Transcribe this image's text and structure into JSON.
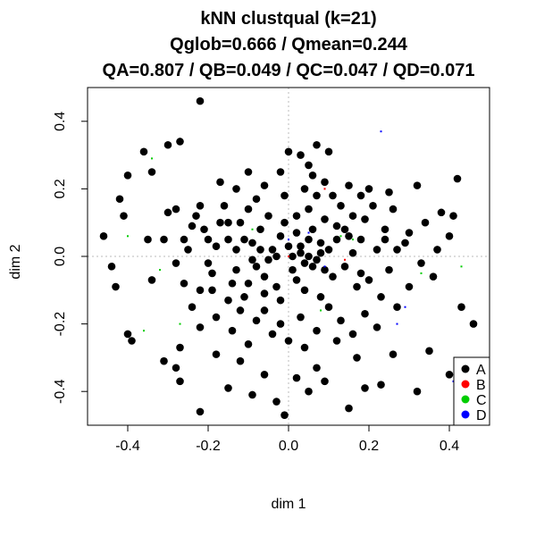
{
  "chart_data": {
    "type": "scatter",
    "title_lines": [
      "kNN clustqual (k=21)",
      "Qglob=0.666 / Qmean=0.244",
      "QA=0.807 / QB=0.049 / QC=0.047 / QD=0.071"
    ],
    "xlabel": "dim 1",
    "ylabel": "dim 2",
    "xlim": [
      -0.5,
      0.5
    ],
    "ylim": [
      -0.5,
      0.5
    ],
    "x_ticks": [
      -0.4,
      -0.2,
      0.0,
      0.2,
      0.4
    ],
    "x_tick_labels": [
      "-0.4",
      "-0.2",
      "0.0",
      "0.2",
      "0.4"
    ],
    "y_ticks": [
      -0.4,
      -0.2,
      0.0,
      0.2,
      0.4
    ],
    "y_tick_labels": [
      "-0.4",
      "-0.2",
      "0.0",
      "0.2",
      "0.4"
    ],
    "reference_lines": {
      "x": 0,
      "y": 0,
      "style": "dotted",
      "color": "#bbbbbb"
    },
    "grid": false,
    "legend_position": "bottom-right",
    "series": [
      {
        "name": "A",
        "color": "#000000",
        "points": [
          [
            -0.22,
            0.46
          ],
          [
            -0.3,
            0.33
          ],
          [
            -0.27,
            0.34
          ],
          [
            -0.36,
            0.31
          ],
          [
            -0.34,
            0.25
          ],
          [
            -0.4,
            0.24
          ],
          [
            -0.46,
            0.06
          ],
          [
            -0.44,
            -0.03
          ],
          [
            -0.43,
            -0.09
          ],
          [
            -0.42,
            0.17
          ],
          [
            -0.41,
            0.12
          ],
          [
            -0.35,
            0.05
          ],
          [
            -0.34,
            -0.07
          ],
          [
            -0.31,
            0.05
          ],
          [
            -0.3,
            0.13
          ],
          [
            -0.28,
            0.14
          ],
          [
            -0.26,
            0.05
          ],
          [
            -0.25,
            0.02
          ],
          [
            -0.24,
            0.09
          ],
          [
            -0.23,
            0.12
          ],
          [
            -0.22,
            0.15
          ],
          [
            -0.21,
            0.08
          ],
          [
            -0.2,
            -0.02
          ],
          [
            -0.19,
            -0.05
          ],
          [
            -0.18,
            0.03
          ],
          [
            -0.17,
            0.1
          ],
          [
            -0.16,
            0.15
          ],
          [
            -0.15,
            0.05
          ],
          [
            -0.14,
            -0.08
          ],
          [
            -0.13,
            0.02
          ],
          [
            -0.12,
            0.1
          ],
          [
            -0.11,
            -0.12
          ],
          [
            -0.1,
            0.14
          ],
          [
            -0.09,
            0.04
          ],
          [
            -0.08,
            -0.03
          ],
          [
            -0.07,
            0.08
          ],
          [
            -0.06,
            -0.06
          ],
          [
            -0.05,
            0.12
          ],
          [
            -0.04,
            0.02
          ],
          [
            -0.03,
            -0.09
          ],
          [
            -0.02,
            0.06
          ],
          [
            -0.01,
            0.18
          ],
          [
            0.0,
            0.03
          ],
          [
            0.01,
            -0.04
          ],
          [
            0.02,
            0.07
          ],
          [
            0.03,
            0.01
          ],
          [
            0.04,
            -0.02
          ],
          [
            0.05,
            0.05
          ],
          [
            0.06,
            0.08
          ],
          [
            0.07,
            -0.01
          ],
          [
            0.08,
            0.04
          ],
          [
            0.09,
            0.11
          ],
          [
            0.1,
            0.02
          ],
          [
            0.11,
            -0.06
          ],
          [
            0.12,
            0.09
          ],
          [
            0.13,
            0.15
          ],
          [
            0.14,
            -0.03
          ],
          [
            0.15,
            0.06
          ],
          [
            0.16,
            0.12
          ],
          [
            0.17,
            -0.09
          ],
          [
            0.18,
            0.05
          ],
          [
            0.19,
            0.11
          ],
          [
            0.2,
            -0.07
          ],
          [
            0.21,
            0.15
          ],
          [
            0.22,
            0.02
          ],
          [
            0.23,
            -0.12
          ],
          [
            0.24,
            0.08
          ],
          [
            0.25,
            -0.04
          ],
          [
            0.26,
            0.14
          ],
          [
            0.27,
            -0.15
          ],
          [
            0.29,
            0.04
          ],
          [
            0.3,
            -0.09
          ],
          [
            0.32,
            0.21
          ],
          [
            0.34,
            0.1
          ],
          [
            0.36,
            -0.06
          ],
          [
            0.38,
            0.13
          ],
          [
            0.4,
            0.06
          ],
          [
            0.41,
            0.12
          ],
          [
            0.42,
            0.23
          ],
          [
            0.43,
            -0.15
          ],
          [
            0.46,
            -0.2
          ],
          [
            0.4,
            -0.35
          ],
          [
            0.43,
            -0.33
          ],
          [
            0.35,
            -0.28
          ],
          [
            0.32,
            -0.4
          ],
          [
            0.26,
            -0.29
          ],
          [
            0.23,
            -0.38
          ],
          [
            0.19,
            -0.39
          ],
          [
            0.17,
            -0.3
          ],
          [
            0.15,
            -0.45
          ],
          [
            0.12,
            -0.25
          ],
          [
            0.09,
            -0.37
          ],
          [
            0.07,
            -0.33
          ],
          [
            0.05,
            -0.4
          ],
          [
            0.02,
            -0.36
          ],
          [
            -0.01,
            -0.47
          ],
          [
            -0.03,
            -0.43
          ],
          [
            -0.06,
            -0.35
          ],
          [
            -0.09,
            -0.41
          ],
          [
            -0.12,
            -0.31
          ],
          [
            -0.15,
            -0.39
          ],
          [
            -0.18,
            -0.29
          ],
          [
            -0.22,
            -0.46
          ],
          [
            -0.27,
            -0.37
          ],
          [
            -0.28,
            -0.33
          ],
          [
            -0.27,
            -0.27
          ],
          [
            -0.31,
            -0.31
          ],
          [
            -0.39,
            -0.25
          ],
          [
            -0.4,
            -0.23
          ],
          [
            -0.22,
            -0.21
          ],
          [
            -0.18,
            -0.18
          ],
          [
            -0.14,
            -0.22
          ],
          [
            -0.1,
            -0.26
          ],
          [
            -0.06,
            -0.16
          ],
          [
            -0.02,
            -0.2
          ],
          [
            0.03,
            -0.18
          ],
          [
            0.07,
            -0.22
          ],
          [
            0.1,
            -0.15
          ],
          [
            0.13,
            -0.19
          ],
          [
            0.16,
            -0.23
          ],
          [
            0.19,
            -0.17
          ],
          [
            0.22,
            -0.21
          ],
          [
            0.08,
            -0.12
          ],
          [
            0.04,
            -0.1
          ],
          [
            -0.02,
            -0.13
          ],
          [
            -0.06,
            -0.11
          ],
          [
            -0.1,
            -0.08
          ],
          [
            -0.15,
            -0.13
          ],
          [
            -0.19,
            -0.1
          ],
          [
            -0.24,
            -0.15
          ],
          [
            -0.26,
            -0.08
          ],
          [
            -0.28,
            -0.02
          ],
          [
            0.0,
            0.31
          ],
          [
            0.03,
            0.3
          ],
          [
            0.05,
            0.27
          ],
          [
            0.06,
            0.24
          ],
          [
            0.09,
            0.22
          ],
          [
            0.11,
            0.18
          ],
          [
            0.1,
            0.31
          ],
          [
            0.07,
            0.33
          ],
          [
            -0.02,
            0.25
          ],
          [
            -0.06,
            0.21
          ],
          [
            -0.1,
            0.25
          ],
          [
            -0.13,
            0.2
          ],
          [
            -0.17,
            0.22
          ],
          [
            0.15,
            0.21
          ],
          [
            0.18,
            0.18
          ],
          [
            0.2,
            0.2
          ],
          [
            0.25,
            0.19
          ],
          [
            0.05,
            0.14
          ],
          [
            0.02,
            0.12
          ],
          [
            -0.01,
            0.1
          ],
          [
            0.07,
            0.18
          ],
          [
            0.04,
            0.2
          ],
          [
            0.12,
            0.05
          ],
          [
            0.14,
            0.08
          ],
          [
            0.16,
            0.01
          ],
          [
            0.01,
            0.0
          ],
          [
            0.03,
            0.03
          ],
          [
            0.05,
            0.0
          ],
          [
            0.06,
            -0.03
          ],
          [
            0.08,
            0.01
          ],
          [
            0.09,
            -0.04
          ],
          [
            0.02,
            -0.07
          ],
          [
            -0.03,
            0.0
          ],
          [
            -0.05,
            -0.01
          ],
          [
            -0.07,
            0.02
          ],
          [
            -0.09,
            -0.01
          ],
          [
            -0.11,
            0.05
          ],
          [
            -0.13,
            -0.04
          ],
          [
            -0.12,
            -0.16
          ],
          [
            -0.08,
            -0.19
          ],
          [
            -0.04,
            -0.23
          ],
          [
            0.0,
            -0.25
          ],
          [
            0.04,
            -0.27
          ],
          [
            -0.08,
            0.17
          ],
          [
            -0.15,
            0.1
          ],
          [
            -0.2,
            0.05
          ],
          [
            -0.22,
            -0.1
          ],
          [
            0.18,
            -0.05
          ],
          [
            0.24,
            0.05
          ],
          [
            0.27,
            0.02
          ],
          [
            0.3,
            0.07
          ],
          [
            0.33,
            -0.02
          ],
          [
            0.37,
            0.02
          ]
        ]
      },
      {
        "name": "B",
        "color": "#ff0000",
        "points": [
          [
            0.0,
            0.0
          ],
          [
            0.09,
            0.2
          ],
          [
            0.14,
            -0.01
          ]
        ]
      },
      {
        "name": "C",
        "color": "#00cd00",
        "points": [
          [
            -0.32,
            -0.04
          ],
          [
            -0.36,
            -0.22
          ],
          [
            -0.27,
            -0.2
          ],
          [
            0.33,
            -0.05
          ],
          [
            0.43,
            -0.03
          ],
          [
            -0.4,
            0.06
          ],
          [
            -0.34,
            0.29
          ],
          [
            0.16,
            0.05
          ],
          [
            -0.09,
            0.08
          ],
          [
            0.13,
            0.06
          ],
          [
            0.08,
            -0.16
          ]
        ]
      },
      {
        "name": "D",
        "color": "#0000ff",
        "points": [
          [
            0.23,
            0.37
          ],
          [
            0.29,
            -0.15
          ],
          [
            0.27,
            -0.2
          ],
          [
            0.05,
            0.07
          ],
          [
            0.0,
            0.05
          ],
          [
            0.09,
            -0.03
          ],
          [
            0.41,
            -0.37
          ]
        ]
      }
    ]
  }
}
